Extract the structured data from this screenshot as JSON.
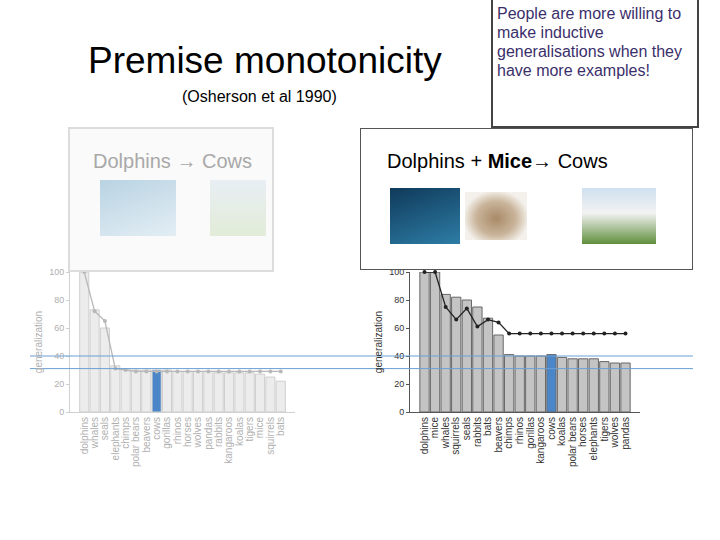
{
  "slide": {
    "title": "Premise monotonicity",
    "subtitle": "(Osherson et al 1990)",
    "callout": "People are more willing to make inductive generalisations when they have more examples!",
    "panels": [
      {
        "label": "Dolphins → Cows"
      },
      {
        "label": "Dolphins + Mice→ Cows",
        "bold": "Mice"
      }
    ]
  },
  "reference_lines": {
    "values": [
      40,
      31
    ],
    "color": "#6b9fd6"
  },
  "chart_data": [
    {
      "type": "bar",
      "y_label": "generalization",
      "categories": [
        "dolphins",
        "whales",
        "seals",
        "elephants",
        "chimps",
        "polar bears",
        "beavers",
        "cows",
        "gorillas",
        "rhinos",
        "horses",
        "wolves",
        "pandas",
        "rabbits",
        "kangaroos",
        "koalas",
        "tigers",
        "mice",
        "squirrels",
        "bats"
      ],
      "series": [
        {
          "type": "bar",
          "colors": [
            "#ececec",
            "#ececec",
            "#ececec",
            "#ececec",
            "#ececec",
            "#ececec",
            "#ececec",
            "#4a86c8",
            "#ececec",
            "#ececec",
            "#ececec",
            "#ececec",
            "#ececec",
            "#ececec",
            "#ececec",
            "#ececec",
            "#ececec",
            "#ececec",
            "#ececec",
            "#ececec"
          ],
          "values": [
            100,
            73,
            60,
            33,
            31,
            30,
            30,
            30,
            30,
            29,
            29,
            29,
            29,
            28,
            28,
            28,
            28,
            27,
            25,
            22
          ]
        },
        {
          "type": "line",
          "color": "#b8b8b8",
          "marker": "circle",
          "values": [
            100,
            72,
            65,
            31,
            30,
            29,
            29,
            29,
            29,
            29,
            29,
            29,
            29,
            29,
            29,
            29,
            29,
            29,
            29,
            29
          ]
        }
      ],
      "ylim": [
        0,
        100
      ],
      "yticks": [
        0,
        20,
        40,
        60,
        80,
        100
      ]
    },
    {
      "type": "bar",
      "y_label": "generalization",
      "categories": [
        "dolphins",
        "mice",
        "whales",
        "squirrels",
        "seals",
        "rabbits",
        "bats",
        "beavers",
        "chimps",
        "rhinos",
        "gorillas",
        "kangaroos",
        "cows",
        "koalas",
        "polar bears",
        "horses",
        "elephants",
        "tigers",
        "wolves",
        "pandas"
      ],
      "series": [
        {
          "type": "bar",
          "colors": [
            "#c4c4c4",
            "#c4c4c4",
            "#c4c4c4",
            "#c4c4c4",
            "#c4c4c4",
            "#c4c4c4",
            "#c4c4c4",
            "#c4c4c4",
            "#c4c4c4",
            "#c4c4c4",
            "#c4c4c4",
            "#c4c4c4",
            "#4a86c8",
            "#c4c4c4",
            "#c4c4c4",
            "#c4c4c4",
            "#c4c4c4",
            "#c4c4c4",
            "#c4c4c4",
            "#c4c4c4"
          ],
          "values": [
            100,
            100,
            84,
            82,
            80,
            75,
            67,
            55,
            41,
            40,
            40,
            40,
            41,
            39,
            38,
            38,
            38,
            36,
            35,
            35
          ]
        },
        {
          "type": "line",
          "color": "#222222",
          "marker": "circle",
          "values": [
            100,
            100,
            75,
            66,
            74,
            61,
            66,
            64,
            56,
            56,
            56,
            56,
            56,
            56,
            56,
            56,
            56,
            56,
            56,
            56
          ]
        }
      ],
      "ylim": [
        0,
        100
      ],
      "yticks": [
        0,
        20,
        40,
        60,
        80,
        100
      ]
    }
  ]
}
